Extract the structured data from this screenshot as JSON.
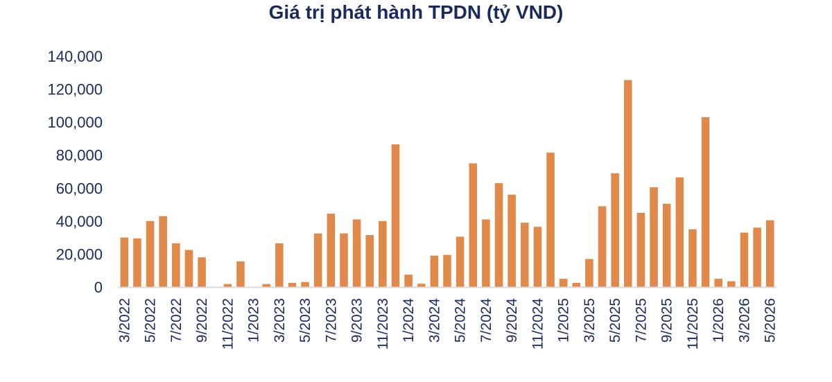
{
  "chart_data": {
    "type": "bar",
    "title": "Giá trị phát hành TPDN (tỷ VND)",
    "xlabel": "",
    "ylabel": "",
    "ylim": [
      0,
      140000
    ],
    "yticks": [
      "0",
      "20,000",
      "40,000",
      "60,000",
      "80,000",
      "100,000",
      "120,000",
      "140,000"
    ],
    "grid": false,
    "legend": "none",
    "bar_color": "#e0894a",
    "axis_color": "#d9d9d9",
    "text_color": "#1b2a5c",
    "categories": [
      "3/2022",
      "4/2022",
      "5/2022",
      "6/2022",
      "7/2022",
      "8/2022",
      "9/2022",
      "10/2022",
      "11/2022",
      "12/2022",
      "1/2023",
      "2/2023",
      "3/2023",
      "4/2023",
      "5/2023",
      "6/2023",
      "7/2023",
      "8/2023",
      "9/2023",
      "10/2023",
      "11/2023",
      "12/2023",
      "1/2024",
      "2/2024",
      "3/2024",
      "4/2024",
      "5/2024",
      "6/2024",
      "7/2024",
      "8/2024",
      "9/2024",
      "10/2024",
      "11/2024",
      "12/2024",
      "1/2025",
      "2/2025",
      "3/2025",
      "4/2025",
      "5/2025",
      "6/2025",
      "7/2025",
      "8/2025",
      "9/2025",
      "10/2025",
      "11/2025",
      "12/2025",
      "1/2026",
      "2/2026",
      "3/2026",
      "4/2026",
      "5/2026"
    ],
    "tick_labels": [
      "3/2022",
      "",
      "5/2022",
      "",
      "7/2022",
      "",
      "9/2022",
      "",
      "11/2022",
      "",
      "1/2023",
      "",
      "3/2023",
      "",
      "5/2023",
      "",
      "7/2023",
      "",
      "9/2023",
      "",
      "11/2023",
      "",
      "1/2024",
      "",
      "3/2024",
      "",
      "5/2024",
      "",
      "7/2024",
      "",
      "9/2024",
      "",
      "11/2024",
      "",
      "1/2025",
      "",
      "3/2025",
      "",
      "5/2025",
      "",
      "7/2025",
      "",
      "9/2025",
      "",
      "11/2025",
      "",
      "1/2026",
      "",
      "3/2026",
      "",
      "5/2026"
    ],
    "values": [
      30000,
      29500,
      40000,
      43000,
      26500,
      22500,
      18000,
      0,
      1800,
      15500,
      0,
      1800,
      26500,
      2500,
      3000,
      32500,
      44500,
      32500,
      41000,
      31500,
      40000,
      86500,
      7500,
      2000,
      19000,
      19500,
      30500,
      75000,
      41000,
      63000,
      56000,
      39000,
      36500,
      81500,
      5000,
      2500,
      17000,
      49000,
      69000,
      125500,
      45000,
      60500,
      50500,
      66500,
      35000,
      103000,
      5000,
      3500,
      33000,
      36000,
      40500
    ]
  }
}
